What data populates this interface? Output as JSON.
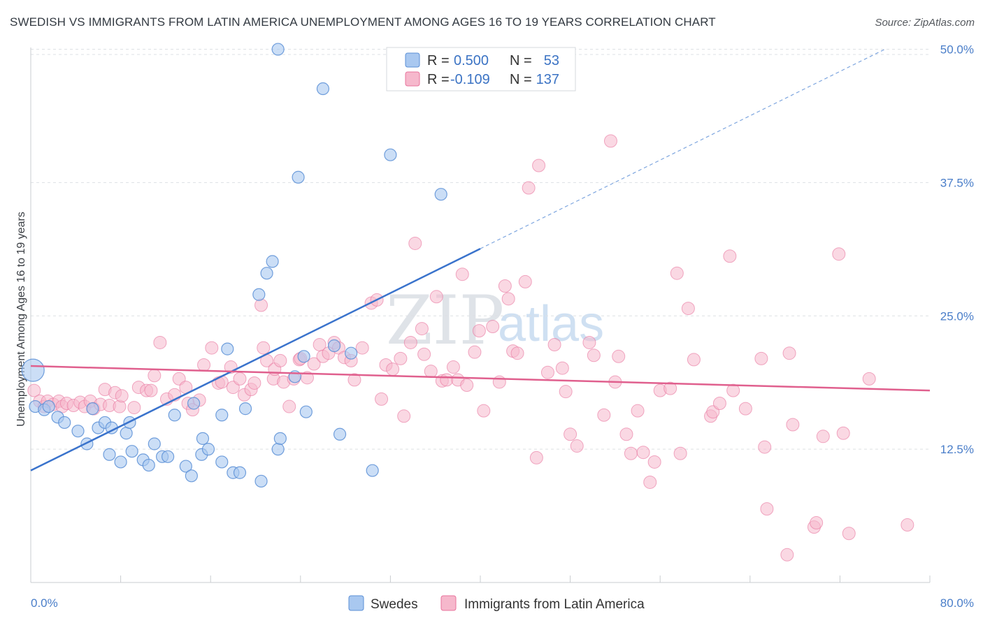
{
  "header": {
    "title": "SWEDISH VS IMMIGRANTS FROM LATIN AMERICA UNEMPLOYMENT AMONG AGES 16 TO 19 YEARS CORRELATION CHART",
    "source": "Source: ZipAtlas.com"
  },
  "watermark": {
    "zip": "ZIP",
    "atlas": "atlas"
  },
  "legend": {
    "r_label": "R =",
    "n_label": "N =",
    "rows": [
      {
        "r": "0.500",
        "n": "53",
        "color": "#a9c8f0"
      },
      {
        "r": "-0.109",
        "n": "137",
        "color": "#f6b8cc"
      }
    ]
  },
  "chart_data": {
    "type": "scatter",
    "title": "SWEDISH VS IMMIGRANTS FROM LATIN AMERICA UNEMPLOYMENT AMONG AGES 16 TO 19 YEARS CORRELATION CHART",
    "xlabel": "",
    "ylabel": "Unemployment Among Ages 16 to 19 years",
    "xlim": [
      0,
      80
    ],
    "ylim": [
      0,
      52
    ],
    "x_tick_labels": [
      "0.0%",
      "80.0%"
    ],
    "y_ticks": [
      {
        "value": 12.5,
        "label": "12.5%"
      },
      {
        "value": 25.0,
        "label": "25.0%"
      },
      {
        "value": 37.5,
        "label": "37.5%"
      },
      {
        "value": 50.0,
        "label": "50.0%"
      }
    ],
    "grid": true,
    "series": [
      {
        "name": "Swedes",
        "color": "#5b8fd6",
        "fill": "#a9c8f0",
        "r": 0.5,
        "n": 53,
        "trend": {
          "x0": 0,
          "y0": 10.5,
          "x1": 40,
          "y1": 31.3,
          "dashed_to_x": 76,
          "dashed_to_y": 50.0
        },
        "points": [
          [
            0.2,
            19.9
          ],
          [
            0.4,
            16.5
          ],
          [
            1.2,
            16.2
          ],
          [
            1.6,
            16.5
          ],
          [
            2.4,
            15.5
          ],
          [
            3.0,
            15.0
          ],
          [
            4.2,
            14.2
          ],
          [
            5.0,
            13.0
          ],
          [
            5.5,
            16.3
          ],
          [
            6.0,
            14.5
          ],
          [
            6.6,
            15.0
          ],
          [
            7.2,
            14.5
          ],
          [
            7.0,
            12.0
          ],
          [
            8.0,
            11.3
          ],
          [
            8.5,
            14.0
          ],
          [
            8.8,
            15.0
          ],
          [
            9.0,
            12.3
          ],
          [
            10.0,
            11.5
          ],
          [
            10.5,
            11.0
          ],
          [
            11.0,
            13.0
          ],
          [
            11.7,
            11.8
          ],
          [
            12.2,
            11.8
          ],
          [
            12.8,
            15.7
          ],
          [
            13.8,
            10.9
          ],
          [
            14.3,
            10.0
          ],
          [
            14.5,
            16.8
          ],
          [
            15.2,
            12.0
          ],
          [
            15.3,
            13.5
          ],
          [
            15.8,
            12.5
          ],
          [
            17.0,
            11.3
          ],
          [
            17.0,
            15.7
          ],
          [
            17.5,
            21.9
          ],
          [
            18.0,
            10.3
          ],
          [
            18.6,
            10.3
          ],
          [
            19.1,
            16.3
          ],
          [
            20.3,
            27.0
          ],
          [
            20.5,
            9.5
          ],
          [
            21.0,
            29.0
          ],
          [
            21.5,
            30.1
          ],
          [
            22.0,
            12.5
          ],
          [
            22.2,
            13.5
          ],
          [
            22.0,
            50.0
          ],
          [
            23.8,
            38.0
          ],
          [
            24.3,
            21.2
          ],
          [
            24.5,
            16.0
          ],
          [
            23.5,
            19.3
          ],
          [
            26.0,
            46.3
          ],
          [
            27.0,
            22.2
          ],
          [
            27.5,
            13.9
          ],
          [
            28.5,
            21.5
          ],
          [
            30.4,
            10.5
          ],
          [
            32.0,
            40.1
          ],
          [
            36.5,
            36.4
          ]
        ]
      },
      {
        "name": "Immigrants from Latin America",
        "color": "#e8739c",
        "fill": "#f6b8cc",
        "r": -0.109,
        "n": 137,
        "trend": {
          "x0": 0,
          "y0": 20.3,
          "x1": 80,
          "y1": 18.0
        },
        "points": [
          [
            0.3,
            18.0
          ],
          [
            0.8,
            17.0
          ],
          [
            1.2,
            16.5
          ],
          [
            1.5,
            17.0
          ],
          [
            2.0,
            16.7
          ],
          [
            2.5,
            17.0
          ],
          [
            2.8,
            16.5
          ],
          [
            3.2,
            16.8
          ],
          [
            3.8,
            16.6
          ],
          [
            4.4,
            16.9
          ],
          [
            4.8,
            16.5
          ],
          [
            5.3,
            17.0
          ],
          [
            5.6,
            16.3
          ],
          [
            6.2,
            16.7
          ],
          [
            6.6,
            18.1
          ],
          [
            7.0,
            16.6
          ],
          [
            7.5,
            17.8
          ],
          [
            7.9,
            16.5
          ],
          [
            8.1,
            17.5
          ],
          [
            9.2,
            16.4
          ],
          [
            9.6,
            18.3
          ],
          [
            10.3,
            18.0
          ],
          [
            10.7,
            18.0
          ],
          [
            11.0,
            19.4
          ],
          [
            11.5,
            22.5
          ],
          [
            12.1,
            17.2
          ],
          [
            12.8,
            17.6
          ],
          [
            13.2,
            19.1
          ],
          [
            13.8,
            18.3
          ],
          [
            14.0,
            16.8
          ],
          [
            14.4,
            16.2
          ],
          [
            15.0,
            17.1
          ],
          [
            15.4,
            20.4
          ],
          [
            16.1,
            22.0
          ],
          [
            16.7,
            18.7
          ],
          [
            17.0,
            18.8
          ],
          [
            17.8,
            20.2
          ],
          [
            18.0,
            18.3
          ],
          [
            18.6,
            19.1
          ],
          [
            19.0,
            17.6
          ],
          [
            19.6,
            18.1
          ],
          [
            19.9,
            18.7
          ],
          [
            20.5,
            26.0
          ],
          [
            20.7,
            22.0
          ],
          [
            21.0,
            20.8
          ],
          [
            21.6,
            19.1
          ],
          [
            21.7,
            20.0
          ],
          [
            22.2,
            20.8
          ],
          [
            22.5,
            18.8
          ],
          [
            23.0,
            16.5
          ],
          [
            23.4,
            19.1
          ],
          [
            23.9,
            20.9
          ],
          [
            24.0,
            21.0
          ],
          [
            24.6,
            19.2
          ],
          [
            25.2,
            20.5
          ],
          [
            25.7,
            22.3
          ],
          [
            26.0,
            21.2
          ],
          [
            26.5,
            21.5
          ],
          [
            27.0,
            22.5
          ],
          [
            27.4,
            22.0
          ],
          [
            27.9,
            21.1
          ],
          [
            28.5,
            20.8
          ],
          [
            28.8,
            19.0
          ],
          [
            29.5,
            22.0
          ],
          [
            30.3,
            26.2
          ],
          [
            30.8,
            26.5
          ],
          [
            31.2,
            17.2
          ],
          [
            31.6,
            20.4
          ],
          [
            32.2,
            20.0
          ],
          [
            32.9,
            21.0
          ],
          [
            33.2,
            15.6
          ],
          [
            33.8,
            22.5
          ],
          [
            34.2,
            31.8
          ],
          [
            34.8,
            23.8
          ],
          [
            35.0,
            21.4
          ],
          [
            35.6,
            19.8
          ],
          [
            36.1,
            26.8
          ],
          [
            36.6,
            18.9
          ],
          [
            37.0,
            19.0
          ],
          [
            37.6,
            20.2
          ],
          [
            38.0,
            19.0
          ],
          [
            38.4,
            28.9
          ],
          [
            38.8,
            18.5
          ],
          [
            39.5,
            21.6
          ],
          [
            39.9,
            23.6
          ],
          [
            40.3,
            16.1
          ],
          [
            41.1,
            24.0
          ],
          [
            41.7,
            18.8
          ],
          [
            42.2,
            27.8
          ],
          [
            42.5,
            26.6
          ],
          [
            42.9,
            21.7
          ],
          [
            43.3,
            21.5
          ],
          [
            44.0,
            28.2
          ],
          [
            44.3,
            37.0
          ],
          [
            45.0,
            11.7
          ],
          [
            45.2,
            39.1
          ],
          [
            46.0,
            19.7
          ],
          [
            46.6,
            22.3
          ],
          [
            47.3,
            20.1
          ],
          [
            47.6,
            17.9
          ],
          [
            48.0,
            13.9
          ],
          [
            48.6,
            12.8
          ],
          [
            49.7,
            22.5
          ],
          [
            50.1,
            21.3
          ],
          [
            51.0,
            15.7
          ],
          [
            51.6,
            41.4
          ],
          [
            52.0,
            18.8
          ],
          [
            52.3,
            21.2
          ],
          [
            53.0,
            13.9
          ],
          [
            53.4,
            12.1
          ],
          [
            54.0,
            16.1
          ],
          [
            54.5,
            12.2
          ],
          [
            55.1,
            9.4
          ],
          [
            55.5,
            11.3
          ],
          [
            56.0,
            18.0
          ],
          [
            56.9,
            18.2
          ],
          [
            57.5,
            29.0
          ],
          [
            57.8,
            12.1
          ],
          [
            58.5,
            25.7
          ],
          [
            59.0,
            20.9
          ],
          [
            60.5,
            15.6
          ],
          [
            60.7,
            16.0
          ],
          [
            61.3,
            16.8
          ],
          [
            62.2,
            30.6
          ],
          [
            62.5,
            18.0
          ],
          [
            63.6,
            16.3
          ],
          [
            65.0,
            21.0
          ],
          [
            65.3,
            12.7
          ],
          [
            65.5,
            6.9
          ],
          [
            67.3,
            2.6
          ],
          [
            67.5,
            21.5
          ],
          [
            67.8,
            14.8
          ],
          [
            69.7,
            5.2
          ],
          [
            69.9,
            5.6
          ],
          [
            70.5,
            13.7
          ],
          [
            71.9,
            30.8
          ],
          [
            72.3,
            14.0
          ],
          [
            72.8,
            4.6
          ],
          [
            74.6,
            19.1
          ],
          [
            78.0,
            5.4
          ]
        ]
      }
    ]
  },
  "bottom_legend": [
    {
      "label": "Swedes",
      "fill": "#a9c8f0",
      "stroke": "#5b8fd6"
    },
    {
      "label": "Immigrants from Latin America",
      "fill": "#f6b8cc",
      "stroke": "#e8739c"
    }
  ]
}
